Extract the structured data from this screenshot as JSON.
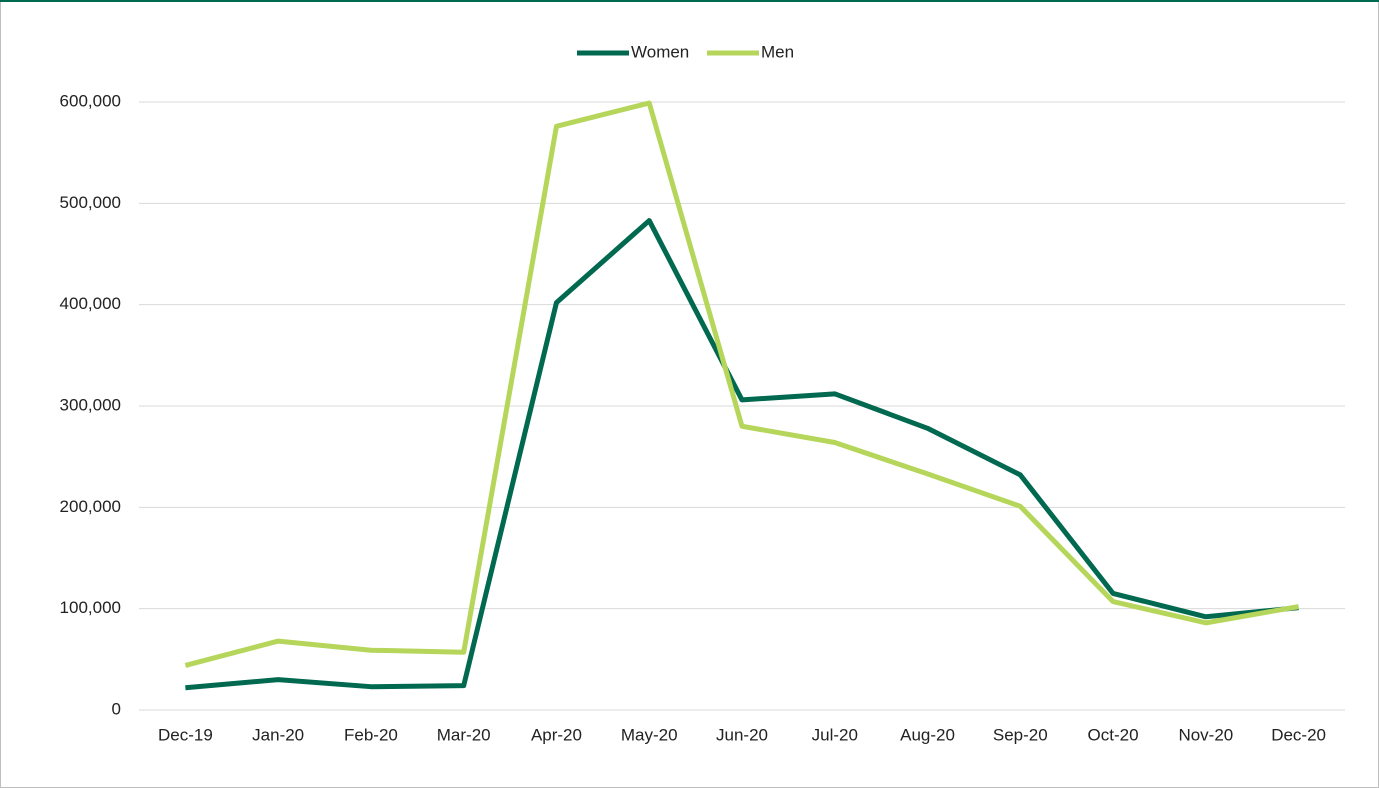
{
  "chart_data": {
    "type": "line",
    "categories": [
      "Dec-19",
      "Jan-20",
      "Feb-20",
      "Mar-20",
      "Apr-20",
      "May-20",
      "Jun-20",
      "Jul-20",
      "Aug-20",
      "Sep-20",
      "Oct-20",
      "Nov-20",
      "Dec-20"
    ],
    "series": [
      {
        "name": "Women",
        "color": "#00694f",
        "values": [
          22000,
          30000,
          23000,
          24000,
          402000,
          483000,
          306000,
          312000,
          278000,
          232000,
          115000,
          92000,
          101000
        ]
      },
      {
        "name": "Men",
        "color": "#b5d65a",
        "values": [
          44000,
          68000,
          59000,
          57000,
          576000,
          599000,
          280000,
          264000,
          233000,
          201000,
          107000,
          86000,
          102000
        ]
      }
    ],
    "ylim": [
      0,
      600000
    ],
    "yticks": [
      0,
      {
        "value": 100000,
        "label": "100,000"
      },
      {
        "value": 200000,
        "label": "200,000"
      },
      {
        "value": 300000,
        "label": "300,000"
      },
      {
        "value": 400000,
        "label": "400,000"
      },
      {
        "value": 500000,
        "label": "500,000"
      },
      {
        "value": 600000,
        "label": "600,000"
      }
    ],
    "grid": true,
    "legend": "top"
  }
}
